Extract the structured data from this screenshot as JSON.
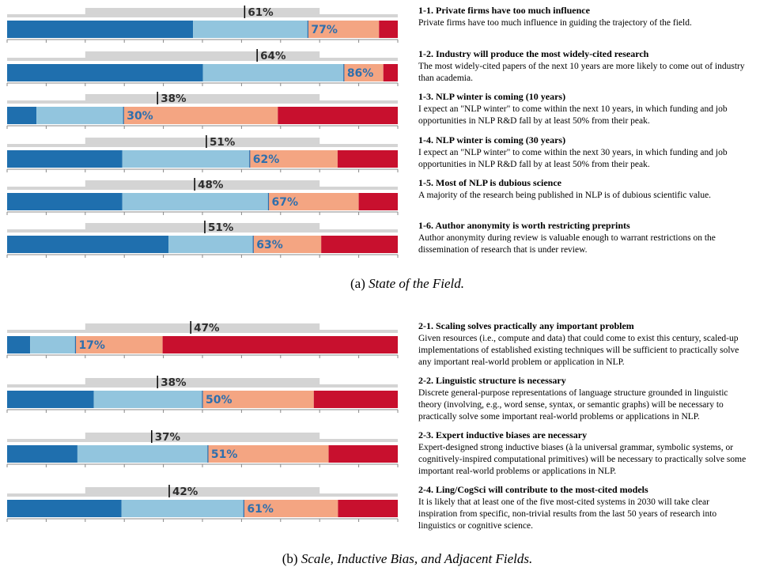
{
  "colors": {
    "strongly_agree": "#1f6fae",
    "agree": "#92c5de",
    "disagree": "#f4a582",
    "strongly_disagree": "#c8102e",
    "prediction_bar": "#d4d4d4",
    "axis": "#888888",
    "label_text": "#2e6fad"
  },
  "chart_data": [
    {
      "type": "bar",
      "subtype": "stacked-horizontal-with-prediction",
      "caption_prefix": "(a)",
      "caption_title": "State of the Field.",
      "xlim": [
        0,
        100
      ],
      "questions": [
        {
          "id": "1-1",
          "title": "1-1. Private firms have too much influence",
          "desc_lines": [
            "Private firms have too much influence in guiding the trajectory of the field."
          ],
          "segments": [
            47.6,
            29.4,
            18.2,
            4.8
          ],
          "agree_label": "77%",
          "predicted_label": "61%",
          "predicted": 60.8
        },
        {
          "id": "1-2",
          "title": "1-2. Industry will produce the most widely-cited research",
          "desc_lines": [
            "The most widely-cited papers of the next 10 years are more likely to come out of industry",
            "than academia."
          ],
          "segments": [
            50.1,
            36.1,
            10.1,
            3.7
          ],
          "agree_label": "86%",
          "predicted_label": "64%",
          "predicted": 64.0
        },
        {
          "id": "1-3",
          "title": "1-3. NLP winter is coming (10 years)",
          "desc_lines": [
            "I expect an \"NLP winter\" to come within the next 10 years, in which funding and job",
            "opportunities in NLP R&D fall by at least 50% from their peak."
          ],
          "segments": [
            7.5,
            22.3,
            39.5,
            30.7
          ],
          "agree_label": "30%",
          "predicted_label": "38%",
          "predicted": 38.5
        },
        {
          "id": "1-4",
          "title": "1-4. NLP winter is coming (30 years)",
          "desc_lines": [
            "I expect an \"NLP winter\" to come within the next 30 years, in which funding and job",
            "opportunities in NLP R&D fall by at least 50% from their peak."
          ],
          "segments": [
            29.5,
            32.6,
            22.5,
            15.4
          ],
          "agree_label": "62%",
          "predicted_label": "51%",
          "predicted": 51.0
        },
        {
          "id": "1-5",
          "title": "1-5. Most of NLP is dubious science",
          "desc_lines": [
            "A majority of the research being published in NLP is of dubious scientific value."
          ],
          "segments": [
            29.5,
            37.4,
            23.1,
            10.0
          ],
          "agree_label": "67%",
          "predicted_label": "48%",
          "predicted": 48.0
        },
        {
          "id": "1-6",
          "title": "1-6. Author anonymity is worth restricting preprints",
          "desc_lines": [
            "Author anonymity during review is valuable enough to warrant restrictions on the",
            "dissemination of research that is under review."
          ],
          "segments": [
            41.3,
            21.7,
            17.4,
            19.6
          ],
          "agree_label": "63%",
          "predicted_label": "51%",
          "predicted": 50.6
        }
      ]
    },
    {
      "type": "bar",
      "subtype": "stacked-horizontal-with-prediction",
      "caption_prefix": "(b)",
      "caption_title": "Scale, Inductive Bias, and Adjacent Fields.",
      "xlim": [
        0,
        100
      ],
      "questions": [
        {
          "id": "2-1",
          "title": "2-1. Scaling solves practically any important problem",
          "desc_lines": [
            "Given resources (i.e., compute and data) that could come to exist this century, scaled-up",
            "implementations of established existing techniques will be sufficient to practically solve",
            "any important real-world problem or application in NLP."
          ],
          "segments": [
            5.9,
            11.6,
            22.3,
            60.2
          ],
          "agree_label": "17%",
          "predicted_label": "47%",
          "predicted": 47.0
        },
        {
          "id": "2-2",
          "title": "2-2. Linguistic structure is necessary",
          "desc_lines": [
            "Discrete general-purpose representations of language structure grounded in linguistic",
            "theory (involving, e.g., word sense, syntax, or semantic graphs) will be necessary to",
            "practically solve some important real-world problems or applications in NLP."
          ],
          "segments": [
            22.2,
            27.8,
            28.5,
            21.5
          ],
          "agree_label": "50%",
          "predicted_label": "38%",
          "predicted": 38.5
        },
        {
          "id": "2-3",
          "title": "2-3. Expert inductive biases are necessary",
          "desc_lines": [
            "Expert-designed strong inductive biases (à la universal grammar, symbolic systems, or",
            "cognitively-inspired computational primitives) will be necessary to practically solve some",
            "important real-world problems or applications in NLP."
          ],
          "segments": [
            18.0,
            33.4,
            30.9,
            17.7
          ],
          "agree_label": "51%",
          "predicted_label": "37%",
          "predicted": 37.0
        },
        {
          "id": "2-4",
          "title": "2-4. Ling/CogSci will contribute to the most-cited models",
          "desc_lines": [
            "It is likely that at least one of the five most-cited systems in 2030 will take clear",
            "inspiration from specific, non-trivial results from the last 50 years of research into",
            "linguistics or cognitive science."
          ],
          "segments": [
            29.3,
            31.3,
            24.1,
            15.3
          ],
          "agree_label": "61%",
          "predicted_label": "42%",
          "predicted": 41.5
        }
      ]
    }
  ]
}
